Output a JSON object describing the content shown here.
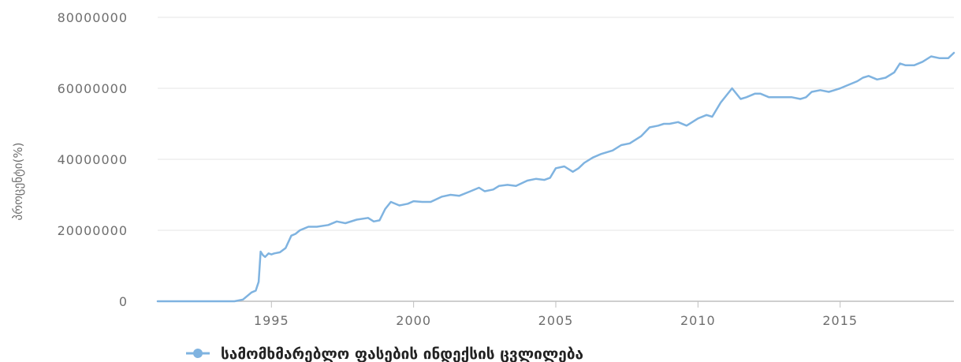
{
  "colors": {
    "series": "#7fb3e0",
    "grid": "#e6e6e6",
    "axis": "#bfbfbf",
    "text": "#6e6e6e"
  },
  "chart_data": {
    "type": "line",
    "title": "",
    "xlabel": "",
    "ylabel": "პროცენტი(%)",
    "xlim": [
      1991,
      2019
    ],
    "ylim": [
      0,
      80000000
    ],
    "yticks": [
      0,
      20000000,
      40000000,
      60000000,
      80000000
    ],
    "ytick_labels": [
      "0",
      "20000000",
      "40000000",
      "60000000",
      "80000000"
    ],
    "xticks": [
      1995,
      2000,
      2005,
      2010,
      2015
    ],
    "xtick_labels": [
      "1995",
      "2000",
      "2005",
      "2010",
      "2015"
    ],
    "grid": true,
    "legend_position": "bottom-left",
    "series": [
      {
        "name": "სამომხმარებლო ფასების ინდექსის ცვლილება",
        "marker": "circle",
        "x": [
          1991.0,
          1993.7,
          1994.0,
          1994.3,
          1994.45,
          1994.55,
          1994.62,
          1994.7,
          1994.78,
          1994.9,
          1995.0,
          1995.1,
          1995.3,
          1995.5,
          1995.7,
          1995.85,
          1996.0,
          1996.3,
          1996.6,
          1997.0,
          1997.3,
          1997.6,
          1998.0,
          1998.4,
          1998.6,
          1998.8,
          1999.0,
          1999.2,
          1999.5,
          1999.8,
          2000.0,
          2000.3,
          2000.6,
          2001.0,
          2001.3,
          2001.6,
          2002.0,
          2002.3,
          2002.5,
          2002.8,
          2003.0,
          2003.3,
          2003.6,
          2004.0,
          2004.3,
          2004.6,
          2004.8,
          2005.0,
          2005.3,
          2005.6,
          2005.8,
          2006.0,
          2006.3,
          2006.6,
          2007.0,
          2007.3,
          2007.6,
          2008.0,
          2008.3,
          2008.6,
          2008.8,
          2009.0,
          2009.3,
          2009.6,
          2009.8,
          2010.0,
          2010.3,
          2010.5,
          2010.8,
          2011.0,
          2011.2,
          2011.5,
          2011.7,
          2012.0,
          2012.2,
          2012.5,
          2012.8,
          2013.0,
          2013.3,
          2013.6,
          2013.8,
          2014.0,
          2014.3,
          2014.6,
          2014.8,
          2015.0,
          2015.3,
          2015.6,
          2015.8,
          2016.0,
          2016.3,
          2016.6,
          2016.9,
          2017.1,
          2017.3,
          2017.6,
          2017.9,
          2018.2,
          2018.5,
          2018.8,
          2019.0
        ],
        "values": [
          0,
          0,
          500000,
          2500000,
          3000000,
          5500000,
          14000000,
          13000000,
          12500000,
          13500000,
          13200000,
          13500000,
          13800000,
          15000000,
          18500000,
          19000000,
          20000000,
          21000000,
          21000000,
          21500000,
          22500000,
          22000000,
          23000000,
          23500000,
          22500000,
          22800000,
          26000000,
          28000000,
          27000000,
          27500000,
          28200000,
          28000000,
          28000000,
          29500000,
          30000000,
          29700000,
          31000000,
          32000000,
          31000000,
          31500000,
          32500000,
          32800000,
          32500000,
          34000000,
          34500000,
          34200000,
          34800000,
          37500000,
          38000000,
          36500000,
          37500000,
          39000000,
          40500000,
          41500000,
          42500000,
          44000000,
          44500000,
          46500000,
          49000000,
          49500000,
          50000000,
          50000000,
          50500000,
          49500000,
          50500000,
          51500000,
          52500000,
          52000000,
          56000000,
          58000000,
          60000000,
          57000000,
          57500000,
          58500000,
          58500000,
          57500000,
          57500000,
          57500000,
          57500000,
          57000000,
          57500000,
          59000000,
          59500000,
          59000000,
          59500000,
          60000000,
          61000000,
          62000000,
          63000000,
          63500000,
          62500000,
          63000000,
          64500000,
          67000000,
          66500000,
          66500000,
          67500000,
          69000000,
          68500000,
          68500000,
          70000000
        ]
      }
    ]
  }
}
